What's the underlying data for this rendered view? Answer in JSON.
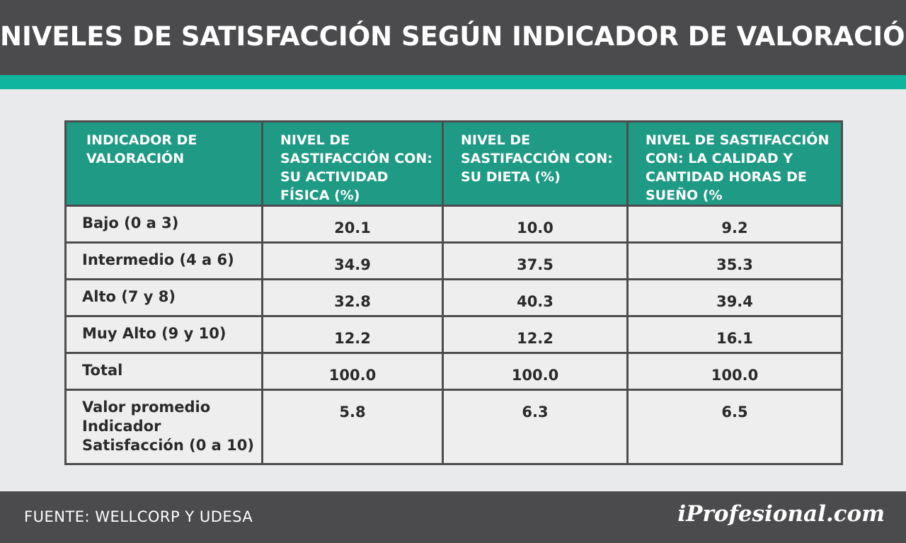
{
  "header": {
    "title": "NIVELES DE SATISFACCIÓN SEGÚN INDICADOR DE VALORACIÓN"
  },
  "footer": {
    "source": "FUENTE: WELLCORP Y UDESA",
    "logo": "iProfesional.com"
  },
  "colors": {
    "header_bg": "#4b4b4d",
    "accent": "#0fb59f",
    "table_header": "#1f9a85",
    "page_bg": "#e9eaeb"
  },
  "chart_data": {
    "type": "table",
    "columns": [
      "INDICADOR DE VALORACIÓN",
      "NIVEL DE SASTIFACCIÓN CON: SU ACTIVIDAD FÍSICA (%)",
      "NIVEL DE SASTIFACCIÓN CON: SU DIETA (%)",
      "NIVEL DE SASTIFACCIÓN CON: LA CALIDAD Y CANTIDAD HORAS DE SUEÑO (%"
    ],
    "rows": [
      {
        "label": "Bajo (0 a 3)",
        "values": [
          "20.1",
          "10.0",
          "9.2"
        ]
      },
      {
        "label": "Intermedio (4 a 6)",
        "values": [
          "34.9",
          "37.5",
          "35.3"
        ]
      },
      {
        "label": "Alto (7 y 8)",
        "values": [
          "32.8",
          "40.3",
          "39.4"
        ]
      },
      {
        "label": "Muy Alto (9 y 10)",
        "values": [
          "12.2",
          "12.2",
          "16.1"
        ]
      },
      {
        "label": "Total",
        "values": [
          "100.0",
          "100.0",
          "100.0"
        ]
      },
      {
        "label": "Valor promedio Indicador Satisfacción (0 a 10)",
        "values": [
          "5.8",
          "6.3",
          "6.5"
        ]
      }
    ]
  }
}
